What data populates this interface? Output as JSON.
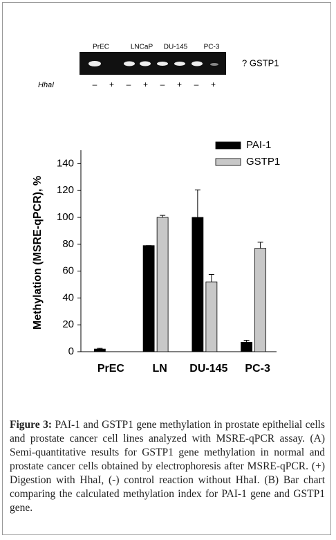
{
  "gel": {
    "lanes": [
      "PrEC",
      "LNCaP",
      "DU-145",
      "PC-3"
    ],
    "gene_label": "? GSTP1",
    "enzyme_label": "HhaI",
    "signs": [
      "–",
      "+",
      "–",
      "+",
      "–",
      "+",
      "–",
      "+"
    ]
  },
  "chart_data": {
    "type": "bar",
    "ylabel": "Methylation (MSRE-qPCR), %",
    "categories": [
      "PrEC",
      "LN",
      "DU-145",
      "PC-3"
    ],
    "series": [
      {
        "name": "PAI-1",
        "color": "#000000",
        "values": [
          2,
          79,
          100,
          7
        ],
        "errors": [
          0.5,
          0,
          20.5,
          1.5
        ]
      },
      {
        "name": "GSTP1",
        "color": "#c8c8c8",
        "values": [
          0,
          100,
          52,
          77
        ],
        "errors": [
          0,
          1.5,
          5.5,
          4.5
        ]
      }
    ],
    "ylim": [
      0,
      150
    ],
    "yticks": [
      0,
      20,
      40,
      60,
      80,
      100,
      120,
      140
    ],
    "legend": "upper right"
  },
  "caption": {
    "label": "Figure 3:",
    "text": "PAI-1 and GSTP1 gene methylation in prostate epithelial cells and prostate cancer cell lines analyzed with MSRE-qPCR assay. (A) Semi-quantitative results for GSTP1 gene methylation in normal and prostate cancer cells obtained by electrophoresis after MSRE-qPCR. (+) Digestion with HhaI, (-) control reaction without HhaI. (B) Bar chart comparing the calculated methylation index for PAI-1 gene and GSTP1 gene."
  }
}
